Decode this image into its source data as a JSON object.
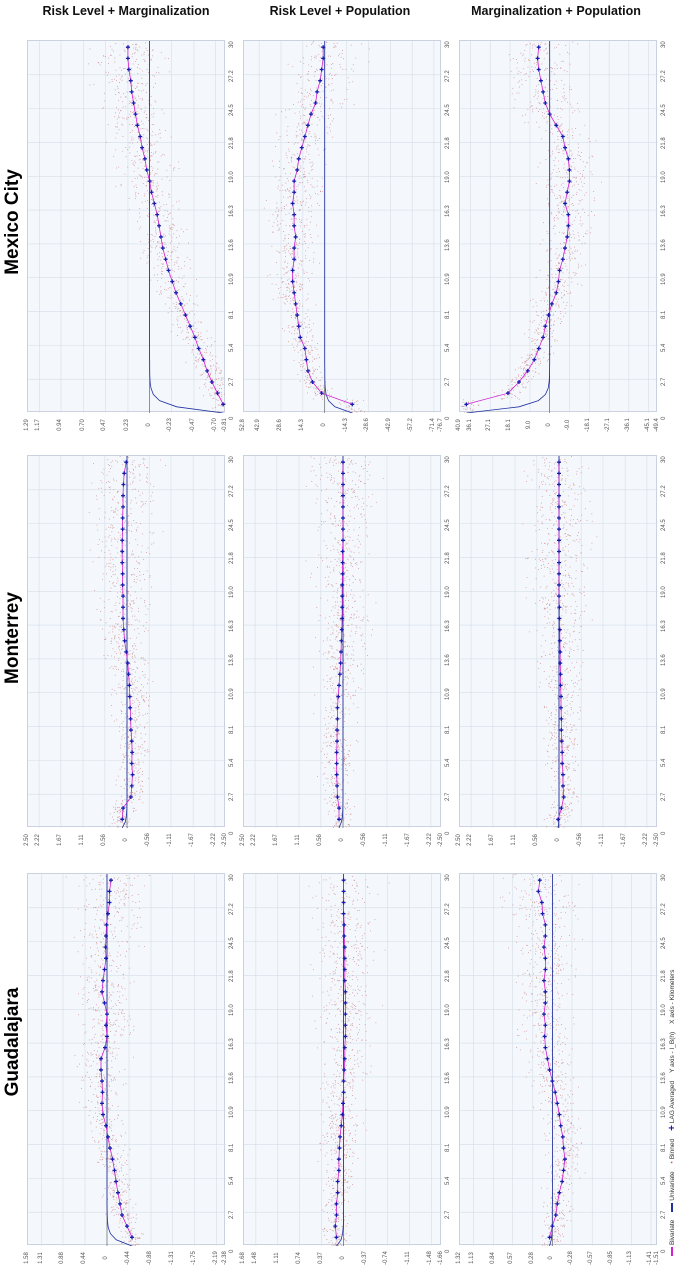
{
  "columns": [
    {
      "title": "Risk Level + Marginalization"
    },
    {
      "title": "Risk Level + Population"
    },
    {
      "title": "Marginalization + Population"
    }
  ],
  "rows": [
    {
      "city": "Mexico City"
    },
    {
      "city": "Monterrey"
    },
    {
      "city": "Guadalajara"
    }
  ],
  "x_ticks": [
    "0",
    "2.7",
    "5.4",
    "8.1",
    "10.9",
    "13.6",
    "16.3",
    "19.0",
    "21.8",
    "24.5",
    "27.2",
    "30"
  ],
  "legend": {
    "bivariate": "Bivariate",
    "univariate": "Univariate",
    "binned": "Binned",
    "lag_averaged": "LAG Averaged",
    "y_axis": "Y axis - I_B(h)",
    "x_axis": "X axis - Kilometers"
  },
  "colors": {
    "bivariate": "#d020d0",
    "univariate": "#2030a0",
    "binned": "#c06060",
    "lag_averaged": "#1a1ab0",
    "grid": "#c9d2de",
    "panel_bg": "#f4f8fd"
  },
  "chart_data": [
    {
      "type": "scatter",
      "city": "Mexico City",
      "pair": "Risk Level + Marginalization",
      "xlabel": "Kilometers",
      "ylabel": "I_B(h)",
      "x_range": [
        0,
        30
      ],
      "y_ticks": [
        "1.29",
        "1.17",
        "0.94",
        "0.70",
        "0.47",
        "0.23",
        "0",
        "-0.23",
        "-0.47",
        "-0.70",
        "-0.81"
      ],
      "lag_x": [
        0.7,
        1.6,
        2.5,
        3.4,
        4.3,
        5.2,
        6.1,
        7.0,
        7.9,
        8.8,
        9.7,
        10.6,
        11.5,
        12.4,
        13.3,
        14.2,
        15.1,
        16.0,
        16.9,
        17.8,
        18.7,
        19.6,
        20.5,
        21.4,
        22.3,
        23.2,
        24.1,
        25.0,
        25.9,
        26.8,
        27.7,
        28.6,
        29.5
      ],
      "lag_y": [
        -0.78,
        -0.72,
        -0.66,
        -0.61,
        -0.57,
        -0.52,
        -0.48,
        -0.43,
        -0.38,
        -0.33,
        -0.28,
        -0.24,
        -0.2,
        -0.17,
        -0.14,
        -0.12,
        -0.1,
        -0.08,
        -0.05,
        -0.02,
        0.0,
        0.03,
        0.05,
        0.08,
        0.1,
        0.13,
        0.15,
        0.17,
        0.19,
        0.2,
        0.22,
        0.23,
        0.23
      ]
    },
    {
      "type": "scatter",
      "city": "Mexico City",
      "pair": "Risk Level + Population",
      "xlabel": "Kilometers",
      "ylabel": "I_B(h)",
      "x_range": [
        0,
        30
      ],
      "y_ticks": [
        "52.8",
        "42.9",
        "28.6",
        "14.3",
        "0",
        "-14.3",
        "-28.6",
        "-42.9",
        "-57.2",
        "-71.4",
        "-76.7"
      ],
      "lag_x": [
        0.7,
        1.6,
        2.5,
        3.4,
        4.3,
        5.2,
        6.1,
        7.0,
        7.9,
        8.8,
        9.7,
        10.6,
        11.5,
        12.4,
        13.3,
        14.2,
        15.1,
        16.0,
        16.9,
        17.8,
        18.7,
        19.6,
        20.5,
        21.4,
        22.3,
        23.2,
        24.1,
        25.0,
        25.9,
        26.8,
        27.7,
        28.6,
        29.5
      ],
      "lag_y": [
        -18,
        2,
        8,
        11,
        12,
        13,
        16,
        17,
        18,
        19,
        20,
        21,
        21,
        20,
        20,
        19,
        20,
        20,
        21,
        20,
        20,
        18,
        17,
        15,
        13,
        11,
        9,
        6,
        5,
        3,
        2,
        1,
        1
      ]
    },
    {
      "type": "scatter",
      "city": "Mexico City",
      "pair": "Marginalization + Population",
      "xlabel": "Kilometers",
      "ylabel": "I_B(h)",
      "x_range": [
        0,
        30
      ],
      "y_ticks": [
        "40.9",
        "36.1",
        "27.1",
        "18.1",
        "9.0",
        "0",
        "-9.0",
        "-18.1",
        "-27.1",
        "-36.1",
        "-45.1",
        "-49.4"
      ],
      "lag_x": [
        0.7,
        1.6,
        2.5,
        3.4,
        4.3,
        5.2,
        6.1,
        7.0,
        7.9,
        8.8,
        9.7,
        10.6,
        11.5,
        12.4,
        13.3,
        14.2,
        15.1,
        16.0,
        16.9,
        17.8,
        18.7,
        19.6,
        20.5,
        21.4,
        22.3,
        23.2,
        24.1,
        25.0,
        25.9,
        26.8,
        27.7,
        28.6,
        29.5
      ],
      "lag_y": [
        38,
        19,
        14,
        10,
        7,
        5,
        3,
        2,
        0.5,
        -1,
        -3,
        -4,
        -4.5,
        -6,
        -7,
        -8,
        -8.5,
        -8.5,
        -7,
        -8,
        -9,
        -9,
        -8.5,
        -7,
        -6,
        -3,
        0,
        2,
        3,
        4,
        5,
        5.5,
        5
      ]
    },
    {
      "type": "scatter",
      "city": "Monterrey",
      "pair": "Risk Level + Marginalization",
      "xlabel": "Kilometers",
      "ylabel": "I_B(h)",
      "x_range": [
        0,
        30
      ],
      "y_ticks": [
        "2.50",
        "2.22",
        "1.67",
        "1.11",
        "0.56",
        "0",
        "-0.56",
        "-1.11",
        "-1.67",
        "-2.22",
        "-2.50"
      ],
      "lag_x": [
        0.7,
        1.6,
        2.5,
        3.4,
        4.3,
        5.2,
        6.1,
        7.0,
        7.9,
        8.8,
        9.7,
        10.6,
        11.5,
        12.4,
        13.3,
        14.2,
        15.1,
        16.0,
        16.9,
        17.8,
        18.7,
        19.6,
        20.5,
        21.4,
        22.3,
        23.2,
        24.1,
        25.0,
        25.9,
        26.8,
        27.7,
        28.6,
        29.5
      ],
      "lag_y": [
        0.12,
        0.1,
        -0.1,
        -0.12,
        -0.14,
        -0.12,
        -0.13,
        -0.12,
        -0.1,
        -0.09,
        -0.08,
        -0.07,
        -0.06,
        -0.04,
        -0.02,
        0.02,
        0.06,
        0.08,
        0.1,
        0.1,
        0.1,
        0.11,
        0.11,
        0.12,
        0.12,
        0.12,
        0.11,
        0.11,
        0.1,
        0.1,
        0.09,
        0.07,
        0.02
      ]
    },
    {
      "type": "scatter",
      "city": "Monterrey",
      "pair": "Risk Level + Population",
      "xlabel": "Kilometers",
      "ylabel": "I_B(h)",
      "x_range": [
        0,
        30
      ],
      "y_ticks": [
        "2.50",
        "2.22",
        "1.67",
        "1.11",
        "0.56",
        "0",
        "-0.56",
        "-1.11",
        "-1.67",
        "-2.22",
        "-2.50"
      ],
      "lag_x": [
        0.7,
        1.6,
        2.5,
        3.4,
        4.3,
        5.2,
        6.1,
        7.0,
        7.9,
        8.8,
        9.7,
        10.6,
        11.5,
        12.4,
        13.3,
        14.2,
        15.1,
        16.0,
        16.9,
        17.8,
        18.7,
        19.6,
        20.5,
        21.4,
        22.3,
        23.2,
        24.1,
        25.0,
        25.9,
        26.8,
        27.7,
        28.6,
        29.5
      ],
      "lag_y": [
        0.1,
        0.1,
        0.14,
        0.15,
        0.16,
        0.16,
        0.16,
        0.15,
        0.15,
        0.14,
        0.14,
        0.12,
        0.1,
        0.08,
        0.06,
        0.05,
        0.04,
        0.03,
        0.02,
        0.02,
        0.02,
        0.02,
        0.01,
        0.01,
        0.01,
        0.0,
        0.0,
        0.0,
        0.0,
        0.0,
        0.0,
        0.0,
        0.0
      ]
    },
    {
      "type": "scatter",
      "city": "Monterrey",
      "pair": "Marginalization + Population",
      "xlabel": "Kilometers",
      "ylabel": "I_B(h)",
      "x_range": [
        0,
        30
      ],
      "y_ticks": [
        "2.50",
        "2.22",
        "1.67",
        "1.11",
        "0.56",
        "0",
        "-0.56",
        "-1.11",
        "-1.67",
        "-2.22",
        "-2.50"
      ],
      "lag_x": [
        0.7,
        1.6,
        2.5,
        3.4,
        4.3,
        5.2,
        6.1,
        7.0,
        7.9,
        8.8,
        9.7,
        10.6,
        11.5,
        12.4,
        13.3,
        14.2,
        15.1,
        16.0,
        16.9,
        17.8,
        18.7,
        19.6,
        20.5,
        21.4,
        22.3,
        23.2,
        24.1,
        25.0,
        25.9,
        26.8,
        27.7,
        28.6,
        29.5
      ],
      "lag_y": [
        0.02,
        -0.06,
        -0.12,
        -0.1,
        -0.1,
        -0.08,
        -0.08,
        -0.07,
        -0.06,
        -0.06,
        -0.05,
        -0.05,
        -0.04,
        -0.04,
        -0.03,
        -0.03,
        -0.02,
        -0.02,
        -0.01,
        -0.01,
        0.0,
        0.0,
        0.0,
        0.0,
        0.0,
        0.0,
        0.0,
        0.0,
        0.0,
        0.0,
        0.0,
        0.0,
        0.0
      ]
    },
    {
      "type": "scatter",
      "city": "Guadalajara",
      "pair": "Risk Level + Marginalization",
      "xlabel": "Kilometers",
      "ylabel": "I_B(h)",
      "x_range": [
        0,
        30
      ],
      "y_ticks": [
        "1.58",
        "1.31",
        "0.88",
        "0.44",
        "0",
        "-0.44",
        "-0.88",
        "-1.31",
        "-1.75",
        "-2.19",
        "-2.38"
      ],
      "lag_x": [
        0.7,
        1.6,
        2.5,
        3.4,
        4.3,
        5.2,
        6.1,
        7.0,
        7.9,
        8.8,
        9.7,
        10.6,
        11.5,
        12.4,
        13.3,
        14.2,
        15.1,
        16.0,
        16.9,
        17.8,
        18.7,
        19.6,
        20.5,
        21.4,
        22.3,
        23.2,
        24.1,
        25.0,
        25.9,
        26.8,
        27.7,
        28.6,
        29.5
      ],
      "lag_y": [
        -0.5,
        -0.4,
        -0.3,
        -0.26,
        -0.22,
        -0.18,
        -0.15,
        -0.11,
        -0.06,
        -0.02,
        0.02,
        0.08,
        0.1,
        0.09,
        0.1,
        0.12,
        0.12,
        0.04,
        0.0,
        0.02,
        -0.0,
        0.05,
        0.1,
        0.08,
        0.05,
        0.02,
        0.03,
        0.02,
        0.01,
        -0.02,
        -0.05,
        -0.05,
        -0.08
      ]
    },
    {
      "type": "scatter",
      "city": "Guadalajara",
      "pair": "Risk Level + Population",
      "xlabel": "Kilometers",
      "ylabel": "I_B(h)",
      "x_range": [
        0,
        30
      ],
      "y_ticks": [
        "1.68",
        "1.48",
        "1.11",
        "0.74",
        "0.37",
        "0",
        "-0.37",
        "-0.74",
        "-1.11",
        "-1.48",
        "-1.66"
      ],
      "lag_x": [
        0.7,
        1.6,
        2.5,
        3.4,
        4.3,
        5.2,
        6.1,
        7.0,
        7.9,
        8.8,
        9.7,
        10.6,
        11.5,
        12.4,
        13.3,
        14.2,
        15.1,
        16.0,
        16.9,
        17.8,
        18.7,
        19.6,
        20.5,
        21.4,
        22.3,
        23.2,
        24.1,
        25.0,
        25.9,
        26.8,
        27.7,
        28.6,
        29.5
      ],
      "lag_y": [
        0.12,
        0.14,
        0.12,
        0.12,
        0.1,
        0.1,
        0.08,
        0.08,
        0.07,
        0.06,
        0.04,
        0.02,
        0.01,
        0.0,
        0.0,
        -0.01,
        -0.02,
        -0.02,
        -0.03,
        -0.03,
        -0.03,
        -0.03,
        -0.03,
        -0.02,
        -0.02,
        -0.02,
        -0.02,
        -0.01,
        -0.01,
        0.0,
        0.0,
        0.0,
        0.0
      ]
    },
    {
      "type": "scatter",
      "city": "Guadalajara",
      "pair": "Marginalization + Population",
      "xlabel": "Kilometers",
      "ylabel": "I_B(h)",
      "x_range": [
        0,
        30
      ],
      "y_ticks": [
        "1.32",
        "1.13",
        "0.84",
        "0.57",
        "0.28",
        "0",
        "-0.28",
        "-0.57",
        "-0.85",
        "-1.13",
        "-1.41",
        "-1.51"
      ],
      "lag_x": [
        0.7,
        1.6,
        2.5,
        3.4,
        4.3,
        5.2,
        6.1,
        7.0,
        7.9,
        8.8,
        9.7,
        10.6,
        11.5,
        12.4,
        13.3,
        14.2,
        15.1,
        16.0,
        16.9,
        17.8,
        18.7,
        19.6,
        20.5,
        21.4,
        22.3,
        23.2,
        24.1,
        25.0,
        25.9,
        26.8,
        27.7,
        28.6,
        29.5
      ],
      "lag_y": [
        0.04,
        0.0,
        -0.05,
        -0.07,
        -0.1,
        -0.14,
        -0.16,
        -0.18,
        -0.16,
        -0.15,
        -0.12,
        -0.1,
        -0.07,
        -0.04,
        0.0,
        0.04,
        0.07,
        0.1,
        0.11,
        0.1,
        0.12,
        0.1,
        0.1,
        0.12,
        0.1,
        0.1,
        0.12,
        0.1,
        0.1,
        0.14,
        0.15,
        0.2,
        0.18
      ]
    }
  ]
}
